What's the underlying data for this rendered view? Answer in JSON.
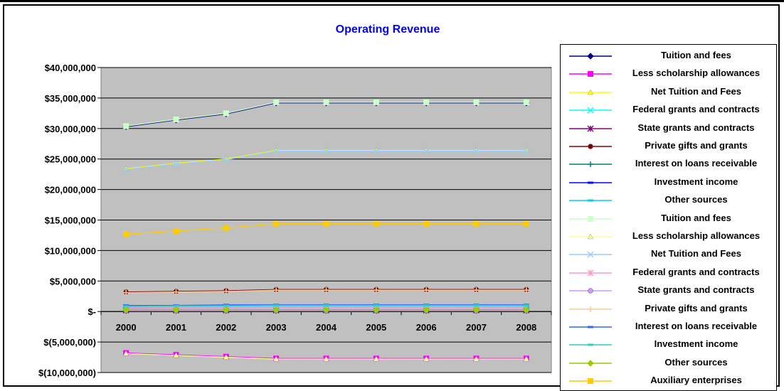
{
  "chart_data": {
    "type": "line",
    "title": "Operating Revenue",
    "x": [
      "2000",
      "2001",
      "2002",
      "2003",
      "2004",
      "2005",
      "2006",
      "2007",
      "2008"
    ],
    "ylim": [
      -10000000,
      40000000
    ],
    "y_ticks": [
      {
        "value": 40000000,
        "label": "$40,000,000"
      },
      {
        "value": 35000000,
        "label": "$35,000,000"
      },
      {
        "value": 30000000,
        "label": "$30,000,000"
      },
      {
        "value": 25000000,
        "label": "$25,000,000"
      },
      {
        "value": 20000000,
        "label": "$20,000,000"
      },
      {
        "value": 15000000,
        "label": "$15,000,000"
      },
      {
        "value": 10000000,
        "label": "$10,000,000"
      },
      {
        "value": 5000000,
        "label": "$5,000,000"
      },
      {
        "value": 0,
        "label": "$-"
      },
      {
        "value": -5000000,
        "label": "$(5,000,000)"
      },
      {
        "value": -10000000,
        "label": "$(10,000,000)"
      }
    ],
    "grid": true,
    "plot_background": "#c0c0c0",
    "legend_position": "right",
    "series": [
      {
        "name": "Tuition and fees",
        "color": "#000080",
        "marker": "diamond",
        "values": [
          30300000,
          31400000,
          32400000,
          34200000,
          34200000,
          34200000,
          34200000,
          34200000,
          34200000
        ]
      },
      {
        "name": "Less scholarship allowances",
        "color": "#ff00ff",
        "marker": "square",
        "values": [
          -6800000,
          -7100000,
          -7400000,
          -7700000,
          -7700000,
          -7700000,
          -7700000,
          -7700000,
          -7700000
        ]
      },
      {
        "name": "Net Tuition and Fees",
        "color": "#ffff00",
        "marker": "triangle",
        "values": [
          23400000,
          24300000,
          25000000,
          26400000,
          26400000,
          26400000,
          26400000,
          26400000,
          26400000
        ]
      },
      {
        "name": "Federal grants and contracts",
        "color": "#00ffff",
        "marker": "x",
        "values": [
          800000,
          800000,
          800000,
          800000,
          800000,
          800000,
          800000,
          800000,
          800000
        ]
      },
      {
        "name": "State grants and contracts",
        "color": "#800080",
        "marker": "star",
        "values": [
          200000,
          200000,
          200000,
          200000,
          200000,
          200000,
          200000,
          200000,
          200000
        ]
      },
      {
        "name": "Private gifts and grants",
        "color": "#800000",
        "marker": "circle",
        "values": [
          3200000,
          3300000,
          3400000,
          3600000,
          3600000,
          3600000,
          3600000,
          3600000,
          3600000
        ]
      },
      {
        "name": "Interest on loans receivable",
        "color": "#008080",
        "marker": "plus",
        "values": [
          100000,
          100000,
          100000,
          100000,
          100000,
          100000,
          100000,
          100000,
          100000
        ]
      },
      {
        "name": "Investment income",
        "color": "#0000ff",
        "marker": "dash",
        "values": [
          900000,
          950000,
          1000000,
          1050000,
          1050000,
          1050000,
          1050000,
          1050000,
          1050000
        ]
      },
      {
        "name": "Other sources",
        "color": "#00ccff",
        "marker": "dash",
        "values": [
          600000,
          650000,
          650000,
          700000,
          700000,
          700000,
          700000,
          700000,
          700000
        ]
      },
      {
        "name": "Tuition and fees",
        "color": "#ccffcc",
        "marker": "square",
        "values": [
          30400000,
          31500000,
          32500000,
          34300000,
          34300000,
          34300000,
          34300000,
          34300000,
          34300000
        ]
      },
      {
        "name": "Less scholarship allowances",
        "color": "#ffff99",
        "marker": "triangle",
        "values": [
          -6900000,
          -7200000,
          -7500000,
          -7800000,
          -7800000,
          -7800000,
          -7800000,
          -7800000,
          -7800000
        ]
      },
      {
        "name": "Net Tuition and Fees",
        "color": "#99ccff",
        "marker": "x",
        "values": [
          23300000,
          24200000,
          24900000,
          26300000,
          26300000,
          26300000,
          26300000,
          26300000,
          26300000
        ]
      },
      {
        "name": "Federal grants and contracts",
        "color": "#ff99cc",
        "marker": "star",
        "values": [
          700000,
          700000,
          700000,
          700000,
          700000,
          700000,
          700000,
          700000,
          700000
        ]
      },
      {
        "name": "State grants and contracts",
        "color": "#cc99ff",
        "marker": "circle",
        "values": [
          150000,
          150000,
          150000,
          150000,
          150000,
          150000,
          150000,
          150000,
          150000
        ]
      },
      {
        "name": "Private gifts and grants",
        "color": "#ffcc99",
        "marker": "plus",
        "values": [
          3100000,
          3200000,
          3300000,
          3500000,
          3500000,
          3500000,
          3500000,
          3500000,
          3500000
        ]
      },
      {
        "name": "Interest on loans receivable",
        "color": "#3366ff",
        "marker": "dash",
        "values": [
          1000000,
          1000000,
          1100000,
          1100000,
          1100000,
          1100000,
          1100000,
          1100000,
          1100000
        ]
      },
      {
        "name": "Investment income",
        "color": "#33cccc",
        "marker": "dash",
        "values": [
          850000,
          900000,
          950000,
          1000000,
          1000000,
          1000000,
          1000000,
          1000000,
          1000000
        ]
      },
      {
        "name": "Other sources",
        "color": "#99cc00",
        "marker": "diamond",
        "values": [
          300000,
          300000,
          300000,
          300000,
          300000,
          300000,
          300000,
          300000,
          300000
        ]
      },
      {
        "name": "Auxiliary enterprises",
        "color": "#ffcc00",
        "marker": "square",
        "values": [
          12700000,
          13200000,
          13700000,
          14400000,
          14400000,
          14400000,
          14400000,
          14400000,
          14400000
        ]
      }
    ]
  }
}
